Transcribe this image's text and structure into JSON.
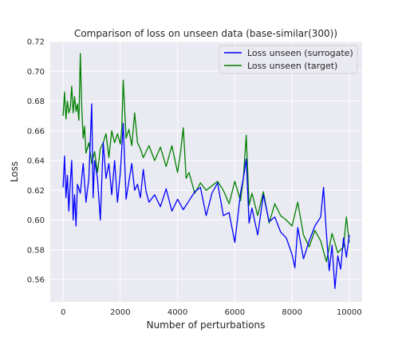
{
  "chart_data": {
    "type": "line",
    "title": "Comparison of loss on unseen data (base-similar(300))",
    "xlabel": "Number of perturbations",
    "ylabel": "Loss",
    "xlim": [
      -450,
      10450
    ],
    "ylim": [
      0.545,
      0.72
    ],
    "xticks": [
      0,
      2000,
      4000,
      6000,
      8000,
      10000
    ],
    "xtick_labels": [
      "0",
      "2000",
      "4000",
      "6000",
      "8000",
      "10000"
    ],
    "yticks": [
      0.56,
      0.58,
      0.6,
      0.62,
      0.64,
      0.66,
      0.68,
      0.7,
      0.72
    ],
    "ytick_labels": [
      "0.56",
      "0.58",
      "0.60",
      "0.62",
      "0.64",
      "0.66",
      "0.68",
      "0.70",
      "0.72"
    ],
    "grid": true,
    "legend_position": "top-right",
    "series": [
      {
        "name": "Loss unseen (surrogate)",
        "color": "#0000ff",
        "x": [
          0,
          50,
          100,
          150,
          200,
          250,
          300,
          350,
          400,
          450,
          500,
          600,
          700,
          800,
          900,
          1000,
          1050,
          1100,
          1200,
          1300,
          1400,
          1500,
          1600,
          1700,
          1800,
          1900,
          2000,
          2100,
          2200,
          2300,
          2400,
          2500,
          2600,
          2700,
          2800,
          2900,
          3000,
          3200,
          3400,
          3600,
          3800,
          4000,
          4200,
          4400,
          4600,
          4800,
          5000,
          5200,
          5400,
          5600,
          5800,
          6000,
          6200,
          6300,
          6400,
          6500,
          6600,
          6800,
          7000,
          7200,
          7400,
          7600,
          7800,
          8000,
          8100,
          8200,
          8400,
          8600,
          8800,
          9000,
          9100,
          9200,
          9300,
          9400,
          9500,
          9600,
          9700,
          9800,
          9900,
          10000
        ],
        "values": [
          0.622,
          0.643,
          0.615,
          0.63,
          0.606,
          0.625,
          0.64,
          0.6,
          0.617,
          0.596,
          0.624,
          0.618,
          0.638,
          0.612,
          0.628,
          0.678,
          0.615,
          0.64,
          0.628,
          0.6,
          0.652,
          0.628,
          0.638,
          0.617,
          0.64,
          0.612,
          0.632,
          0.665,
          0.614,
          0.626,
          0.638,
          0.62,
          0.624,
          0.615,
          0.634,
          0.619,
          0.612,
          0.617,
          0.609,
          0.621,
          0.606,
          0.614,
          0.607,
          0.613,
          0.619,
          0.622,
          0.603,
          0.618,
          0.625,
          0.603,
          0.605,
          0.585,
          0.618,
          0.628,
          0.641,
          0.598,
          0.608,
          0.59,
          0.617,
          0.599,
          0.602,
          0.592,
          0.588,
          0.577,
          0.568,
          0.595,
          0.574,
          0.586,
          0.596,
          0.602,
          0.622,
          0.591,
          0.566,
          0.583,
          0.554,
          0.576,
          0.567,
          0.588,
          0.575,
          0.59
        ]
      },
      {
        "name": "Loss unseen (target)",
        "color": "#008000",
        "x": [
          0,
          50,
          100,
          150,
          200,
          250,
          300,
          350,
          400,
          450,
          500,
          550,
          600,
          650,
          700,
          750,
          800,
          900,
          1000,
          1100,
          1200,
          1300,
          1400,
          1500,
          1600,
          1700,
          1800,
          1900,
          2000,
          2050,
          2100,
          2200,
          2300,
          2400,
          2500,
          2600,
          2700,
          2800,
          2900,
          3000,
          3200,
          3400,
          3600,
          3800,
          4000,
          4100,
          4200,
          4300,
          4400,
          4600,
          4800,
          5000,
          5200,
          5400,
          5600,
          5800,
          6000,
          6200,
          6300,
          6400,
          6500,
          6600,
          6800,
          7000,
          7200,
          7400,
          7600,
          7800,
          8000,
          8200,
          8400,
          8600,
          8800,
          9000,
          9200,
          9400,
          9600,
          9800,
          9900,
          10000
        ],
        "values": [
          0.67,
          0.686,
          0.668,
          0.68,
          0.672,
          0.675,
          0.69,
          0.672,
          0.683,
          0.673,
          0.678,
          0.667,
          0.712,
          0.675,
          0.655,
          0.663,
          0.645,
          0.652,
          0.638,
          0.646,
          0.632,
          0.648,
          0.652,
          0.658,
          0.642,
          0.66,
          0.652,
          0.658,
          0.651,
          0.662,
          0.694,
          0.655,
          0.661,
          0.65,
          0.672,
          0.652,
          0.648,
          0.642,
          0.646,
          0.65,
          0.64,
          0.649,
          0.636,
          0.65,
          0.632,
          0.645,
          0.662,
          0.628,
          0.632,
          0.618,
          0.625,
          0.62,
          0.623,
          0.626,
          0.62,
          0.611,
          0.626,
          0.613,
          0.628,
          0.657,
          0.61,
          0.618,
          0.603,
          0.619,
          0.598,
          0.611,
          0.603,
          0.6,
          0.596,
          0.612,
          0.59,
          0.582,
          0.593,
          0.586,
          0.572,
          0.591,
          0.578,
          0.582,
          0.602,
          0.585
        ]
      }
    ]
  }
}
